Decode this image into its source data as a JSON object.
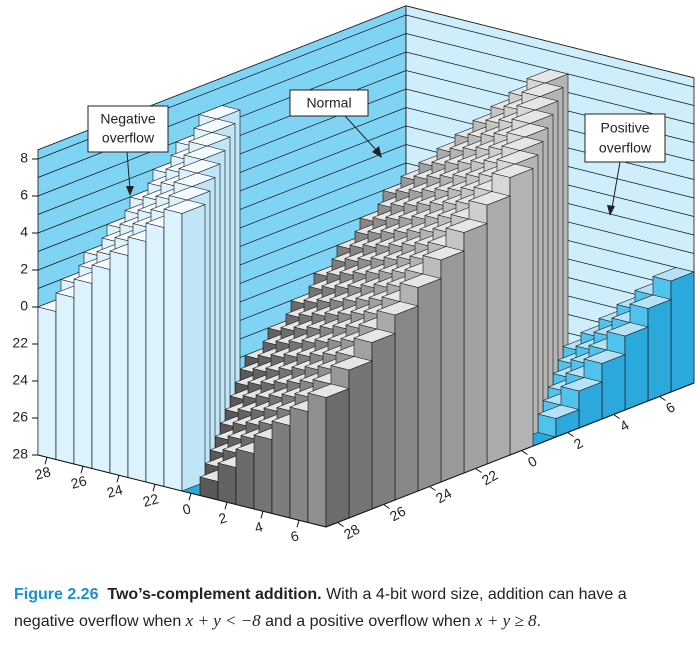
{
  "figure": {
    "left_axis_labels": [
      "8",
      "6",
      "4",
      "2",
      "0",
      "22",
      "24",
      "26",
      "28"
    ],
    "front_left_labels": [
      "28",
      "26",
      "24",
      "22",
      "0",
      "2",
      "4",
      "6"
    ],
    "front_right_labels": [
      "28",
      "26",
      "24",
      "22",
      "0",
      "2",
      "4",
      "6"
    ],
    "callouts": [
      {
        "lines": [
          "Negative",
          "overflow"
        ]
      },
      {
        "lines": [
          "Normal"
        ]
      },
      {
        "lines": [
          "Positive",
          "overflow"
        ]
      }
    ]
  },
  "caption": {
    "label": "Figure 2.26",
    "title": "Two’s-complement addition.",
    "text_1": "With a 4-bit word size, addition can have a",
    "text_2": "negative overflow when",
    "math_1": "x + y < −8",
    "text_3": "and a positive overflow when",
    "math_2": "x + y ≥ 8",
    "text_4": "."
  }
}
